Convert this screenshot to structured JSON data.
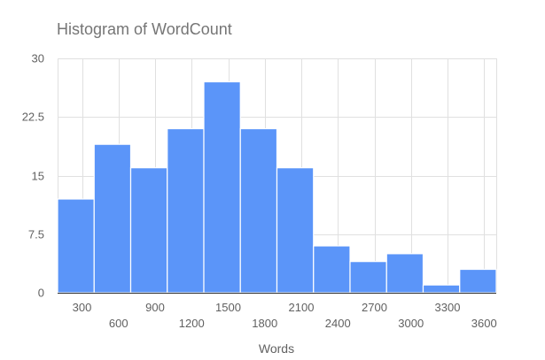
{
  "chart_data": {
    "type": "bar",
    "title": "Histogram of WordCount",
    "xlabel": "Words",
    "ylabel": "",
    "bin_edges": [
      100,
      400,
      700,
      1000,
      1300,
      1600,
      1900,
      2200,
      2500,
      2800,
      3100,
      3400,
      3700
    ],
    "values": [
      12,
      19,
      16,
      21,
      27,
      21,
      16,
      6,
      4,
      5,
      1,
      3
    ],
    "xlim": [
      100,
      3700
    ],
    "ylim": [
      0,
      30
    ],
    "x_ticks": [
      "300",
      "600",
      "900",
      "1200",
      "1500",
      "1800",
      "2100",
      "2400",
      "2700",
      "3000",
      "3300",
      "3600"
    ],
    "y_ticks": [
      "0",
      "7.5",
      "15",
      "22.5",
      "30"
    ],
    "grid": true,
    "colors": {
      "bar": "#5b95f9",
      "grid": "#e0e0e0",
      "baseline": "#333333",
      "title": "#757575",
      "axis_text": "#616161"
    }
  }
}
